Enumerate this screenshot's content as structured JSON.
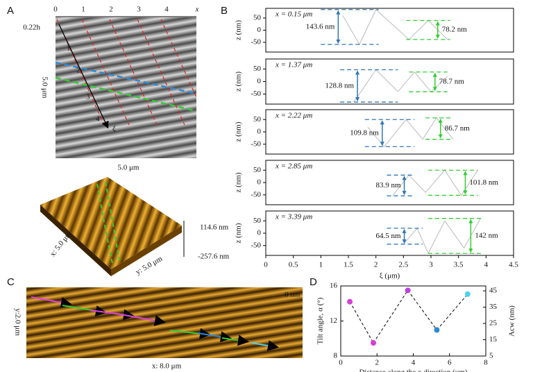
{
  "panels": {
    "a": {
      "label": "A",
      "scale": "0.22h",
      "top_ticks": [
        "0",
        "1",
        "2",
        "3",
        "4",
        "x"
      ],
      "side_label": "5.0 μm",
      "bottom_label": "5.0 μm",
      "arrow_ticks": [
        "1",
        "2",
        "3",
        "4"
      ],
      "arrow_label": "ξ",
      "surface_max": "114.6 nm",
      "surface_min": "-257.6 nm",
      "surface_x": "x: 5.0 μm",
      "surface_y": "y: 5.0 μm"
    },
    "b": {
      "label": "B"
    },
    "c": {
      "label": "C",
      "side_label": "y:2.0 μm",
      "bottom_label": "x: 8.0 μm",
      "scale": "0 nm"
    },
    "d": {
      "label": "D"
    }
  },
  "chart_data": [
    {
      "type": "line",
      "title": "x = 0.15 μm",
      "ylabel": "z (nm)",
      "xlim": [
        0,
        4.5
      ],
      "ylim": [
        -90,
        90
      ],
      "yticks": [
        50,
        0,
        -50
      ],
      "color": "#bbbbbb",
      "x": [
        1.4,
        1.7,
        2.0,
        2.6,
        2.95,
        3.3
      ],
      "values": [
        60,
        -58.6,
        85,
        -38.2,
        40,
        -38.2
      ],
      "bands": [
        {
          "color": "#2e75b6",
          "top": 85,
          "bottom": -58.6,
          "x": [
            1.0,
            2.05
          ],
          "label": "143.6 nm"
        },
        {
          "color": "#33cc33",
          "top": 40,
          "bottom": -38.2,
          "x": [
            2.55,
            3.35
          ],
          "label": "78.2 nm"
        }
      ]
    },
    {
      "type": "line",
      "title": "x = 1.37 μm",
      "ylabel": "z (nm)",
      "xlim": [
        0,
        4.5
      ],
      "ylim": [
        -90,
        90
      ],
      "yticks": [
        50,
        0,
        -50
      ],
      "color": "#bbbbbb",
      "x": [
        1.6,
        2.0,
        2.4,
        2.7,
        3.0,
        3.3
      ],
      "values": [
        -81.8,
        47,
        -40,
        38,
        -40.7,
        20
      ],
      "bands": [
        {
          "color": "#2e75b6",
          "top": 47,
          "bottom": -81.8,
          "x": [
            1.35,
            2.4
          ],
          "label": "128.8 nm"
        },
        {
          "color": "#33cc33",
          "top": 38,
          "bottom": -40.7,
          "x": [
            2.6,
            3.3
          ],
          "label": "78.7 nm"
        }
      ]
    },
    {
      "type": "line",
      "title": "x = 2.22 μm",
      "ylabel": "z (nm)",
      "xlim": [
        0,
        4.5
      ],
      "ylim": [
        -90,
        90
      ],
      "yticks": [
        50,
        0,
        -50
      ],
      "color": "#bbbbbb",
      "x": [
        1.85,
        2.15,
        2.55,
        2.85,
        3.1,
        3.4
      ],
      "values": [
        20,
        -59.8,
        50,
        -30,
        56.7,
        -30
      ],
      "bands": [
        {
          "color": "#2e75b6",
          "top": 50,
          "bottom": -59.8,
          "x": [
            1.8,
            2.7
          ],
          "label": "109.8 nm"
        },
        {
          "color": "#33cc33",
          "top": 56.7,
          "bottom": -30,
          "x": [
            2.9,
            3.4
          ],
          "label": "86.7 nm"
        }
      ]
    },
    {
      "type": "line",
      "title": "x = 2.85 μm",
      "ylabel": "z (nm)",
      "xlim": [
        0,
        4.5
      ],
      "ylim": [
        -90,
        90
      ],
      "yticks": [
        50,
        0,
        -50
      ],
      "color": "#bbbbbb",
      "x": [
        2.3,
        2.6,
        2.9,
        3.25,
        3.55,
        3.85
      ],
      "values": [
        -53.9,
        30,
        -40,
        50,
        -51.8,
        50
      ],
      "bands": [
        {
          "color": "#2e75b6",
          "top": 30,
          "bottom": -53.9,
          "x": [
            2.2,
            2.7
          ],
          "label": "83.9 nm"
        },
        {
          "color": "#33cc33",
          "top": 50,
          "bottom": -51.8,
          "x": [
            2.95,
            3.85
          ],
          "label": "101.8 nm"
        }
      ]
    },
    {
      "type": "line",
      "title": "x = 3.39 μm",
      "ylabel": "z (nm)",
      "xlabel": "ξ (μm)",
      "xlim": [
        0,
        4.5
      ],
      "ylim": [
        -90,
        90
      ],
      "yticks": [
        50,
        0,
        -50
      ],
      "xticks": [
        0,
        0.5,
        1,
        1.5,
        2,
        2.5,
        3,
        3.5,
        4,
        4.5
      ],
      "color": "#bbbbbb",
      "x": [
        2.5,
        2.75,
        2.95,
        3.25,
        3.6,
        3.9
      ],
      "values": [
        -44.5,
        20,
        -82,
        50,
        -60,
        60
      ],
      "bands": [
        {
          "color": "#2e75b6",
          "top": 20,
          "bottom": -44.5,
          "x": [
            2.2,
            2.85
          ],
          "label": "64.5 nm"
        },
        {
          "color": "#33cc33",
          "top": 60,
          "bottom": -82,
          "x": [
            2.95,
            3.95
          ],
          "label": "142 nm"
        }
      ]
    },
    {
      "type": "scatter",
      "xlabel": "Distance along the x direction (um)",
      "ylabel": "Tilt angle, α (°)",
      "y2label": "Acw (nm)",
      "xlim": [
        0,
        8
      ],
      "xticks": [
        0,
        2,
        4,
        6,
        8
      ],
      "ylim": [
        8,
        16
      ],
      "yticks": [
        8,
        12,
        16
      ],
      "y2lim": [
        5,
        48
      ],
      "y2ticks": [
        5,
        15,
        25,
        35,
        45
      ],
      "series": [
        {
          "x": [
            0.5,
            1.8,
            3.7
          ],
          "values": [
            14.2,
            9.5,
            15.5
          ],
          "colors": [
            "#d63fd6",
            "#d63fd6",
            "#c040e0"
          ]
        },
        {
          "axis": "y2",
          "x": [
            5.3,
            7.0
          ],
          "values": [
            21,
            43
          ],
          "colors": [
            "#2b8ad6",
            "#4fd1e8"
          ]
        }
      ]
    }
  ]
}
